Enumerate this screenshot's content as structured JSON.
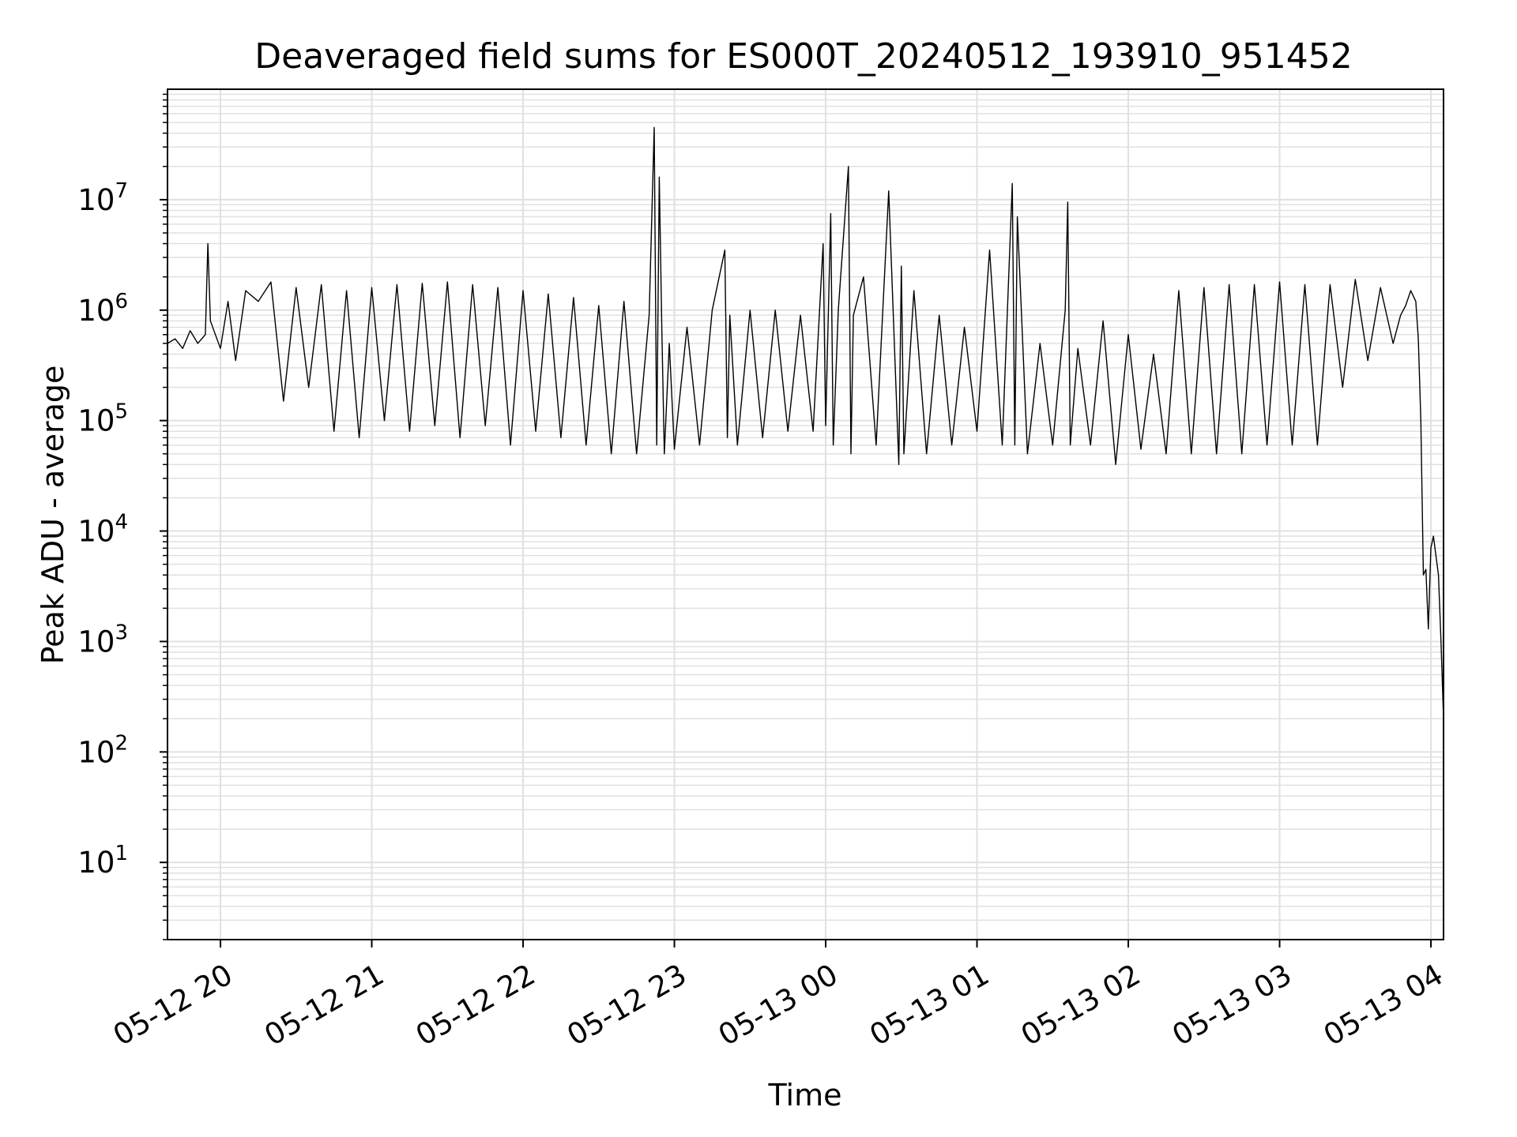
{
  "chart_data": {
    "type": "line",
    "title": "Deaveraged field sums for ES000T_20240512_193910_951452",
    "xlabel": "Time",
    "ylabel": "Peak ADU - average",
    "x_scale": "time",
    "y_scale": "log",
    "xlim": [
      "2024-05-12 19:39",
      "2024-05-13 04:05"
    ],
    "ylim": [
      2,
      100000000
    ],
    "grid": true,
    "legend": "none",
    "line_color": "#000000",
    "grid_color": "#e0e0e0",
    "x_ticks": [
      {
        "value": "2024-05-12 20:00",
        "label": "05-12 20"
      },
      {
        "value": "2024-05-12 21:00",
        "label": "05-12 21"
      },
      {
        "value": "2024-05-12 22:00",
        "label": "05-12 22"
      },
      {
        "value": "2024-05-12 23:00",
        "label": "05-12 23"
      },
      {
        "value": "2024-05-13 00:00",
        "label": "05-13 00"
      },
      {
        "value": "2024-05-13 01:00",
        "label": "05-13 01"
      },
      {
        "value": "2024-05-13 02:00",
        "label": "05-13 02"
      },
      {
        "value": "2024-05-13 03:00",
        "label": "05-13 03"
      },
      {
        "value": "2024-05-13 04:00",
        "label": "05-13 04"
      }
    ],
    "y_ticks": [
      {
        "value": 10,
        "base": "10",
        "exp": "1"
      },
      {
        "value": 100,
        "base": "10",
        "exp": "2"
      },
      {
        "value": 1000,
        "base": "10",
        "exp": "3"
      },
      {
        "value": 10000,
        "base": "10",
        "exp": "4"
      },
      {
        "value": 100000,
        "base": "10",
        "exp": "5"
      },
      {
        "value": 1000000,
        "base": "10",
        "exp": "6"
      },
      {
        "value": 10000000,
        "base": "10",
        "exp": "7"
      }
    ],
    "series": [
      {
        "x": [
          "2024-05-12 19:39",
          "2024-05-12 19:42",
          "2024-05-12 19:45",
          "2024-05-12 19:48",
          "2024-05-12 19:51",
          "2024-05-12 19:54",
          "2024-05-12 19:55",
          "2024-05-12 19:56",
          "2024-05-12 19:58",
          "2024-05-12 20:00",
          "2024-05-12 20:03",
          "2024-05-12 20:06",
          "2024-05-12 20:10",
          "2024-05-12 20:15",
          "2024-05-12 20:20",
          "2024-05-12 20:25",
          "2024-05-12 20:30",
          "2024-05-12 20:35",
          "2024-05-12 20:40",
          "2024-05-12 20:45",
          "2024-05-12 20:50",
          "2024-05-12 20:55",
          "2024-05-12 21:00",
          "2024-05-12 21:05",
          "2024-05-12 21:10",
          "2024-05-12 21:15",
          "2024-05-12 21:20",
          "2024-05-12 21:25",
          "2024-05-12 21:30",
          "2024-05-12 21:35",
          "2024-05-12 21:40",
          "2024-05-12 21:45",
          "2024-05-12 21:50",
          "2024-05-12 21:55",
          "2024-05-12 22:00",
          "2024-05-12 22:05",
          "2024-05-12 22:10",
          "2024-05-12 22:15",
          "2024-05-12 22:20",
          "2024-05-12 22:25",
          "2024-05-12 22:30",
          "2024-05-12 22:35",
          "2024-05-12 22:40",
          "2024-05-12 22:45",
          "2024-05-12 22:50",
          "2024-05-12 22:52",
          "2024-05-12 22:53",
          "2024-05-12 22:54",
          "2024-05-12 22:55",
          "2024-05-12 22:56",
          "2024-05-12 22:58",
          "2024-05-12 23:00",
          "2024-05-12 23:05",
          "2024-05-12 23:10",
          "2024-05-12 23:15",
          "2024-05-12 23:20",
          "2024-05-12 23:21",
          "2024-05-12 23:22",
          "2024-05-12 23:25",
          "2024-05-12 23:30",
          "2024-05-12 23:35",
          "2024-05-12 23:40",
          "2024-05-12 23:45",
          "2024-05-12 23:50",
          "2024-05-12 23:55",
          "2024-05-12 23:59",
          "2024-05-13 00:00",
          "2024-05-13 00:02",
          "2024-05-13 00:03",
          "2024-05-13 00:05",
          "2024-05-13 00:09",
          "2024-05-13 00:10",
          "2024-05-13 00:11",
          "2024-05-13 00:15",
          "2024-05-13 00:20",
          "2024-05-13 00:25",
          "2024-05-13 00:29",
          "2024-05-13 00:30",
          "2024-05-13 00:31",
          "2024-05-13 00:35",
          "2024-05-13 00:40",
          "2024-05-13 00:45",
          "2024-05-13 00:50",
          "2024-05-13 00:55",
          "2024-05-13 01:00",
          "2024-05-13 01:05",
          "2024-05-13 01:10",
          "2024-05-13 01:14",
          "2024-05-13 01:15",
          "2024-05-13 01:16",
          "2024-05-13 01:20",
          "2024-05-13 01:25",
          "2024-05-13 01:30",
          "2024-05-13 01:35",
          "2024-05-13 01:36",
          "2024-05-13 01:37",
          "2024-05-13 01:40",
          "2024-05-13 01:45",
          "2024-05-13 01:50",
          "2024-05-13 01:55",
          "2024-05-13 02:00",
          "2024-05-13 02:05",
          "2024-05-13 02:10",
          "2024-05-13 02:15",
          "2024-05-13 02:20",
          "2024-05-13 02:25",
          "2024-05-13 02:30",
          "2024-05-13 02:35",
          "2024-05-13 02:40",
          "2024-05-13 02:45",
          "2024-05-13 02:50",
          "2024-05-13 02:55",
          "2024-05-13 03:00",
          "2024-05-13 03:05",
          "2024-05-13 03:10",
          "2024-05-13 03:15",
          "2024-05-13 03:20",
          "2024-05-13 03:25",
          "2024-05-13 03:30",
          "2024-05-13 03:35",
          "2024-05-13 03:40",
          "2024-05-13 03:45",
          "2024-05-13 03:48",
          "2024-05-13 03:50",
          "2024-05-13 03:52",
          "2024-05-13 03:54",
          "2024-05-13 03:55",
          "2024-05-13 03:56",
          "2024-05-13 03:57",
          "2024-05-13 03:58",
          "2024-05-13 03:59",
          "2024-05-13 04:00",
          "2024-05-13 04:01",
          "2024-05-13 04:02",
          "2024-05-13 04:03",
          "2024-05-13 04:04",
          "2024-05-13 04:05"
        ],
        "y": [
          500000,
          550000,
          450000,
          650000,
          500000,
          600000,
          4000000,
          800000,
          600000,
          450000,
          1200000,
          350000,
          1500000,
          1200000,
          1800000,
          150000,
          1600000,
          200000,
          1700000,
          80000,
          1500000,
          70000,
          1600000,
          100000,
          1700000,
          80000,
          1750000,
          90000,
          1800000,
          70000,
          1700000,
          90000,
          1600000,
          60000,
          1500000,
          80000,
          1400000,
          70000,
          1300000,
          60000,
          1100000,
          50000,
          1200000,
          50000,
          900000,
          45000000,
          60000,
          16000000,
          700000,
          50000,
          500000,
          55000,
          700000,
          60000,
          1000000,
          3500000,
          70000,
          900000,
          60000,
          1000000,
          70000,
          1000000,
          80000,
          900000,
          80000,
          4000000,
          90000,
          7500000,
          60000,
          1000000,
          20000000,
          50000,
          900000,
          2000000,
          60000,
          12000000,
          40000,
          2500000,
          50000,
          1500000,
          50000,
          900000,
          60000,
          700000,
          80000,
          3500000,
          60000,
          14000000,
          60000,
          7000000,
          50000,
          500000,
          60000,
          1000000,
          9500000,
          60000,
          450000,
          60000,
          800000,
          40000,
          600000,
          55000,
          400000,
          50000,
          1500000,
          50000,
          1600000,
          50000,
          1700000,
          50000,
          1700000,
          60000,
          1800000,
          60000,
          1700000,
          60000,
          1700000,
          200000,
          1900000,
          350000,
          1600000,
          500000,
          900000,
          1100000,
          1500000,
          1200000,
          550000,
          100000,
          4000,
          4500,
          1300,
          7000,
          9000,
          6000,
          4000,
          1000,
          200
        ]
      }
    ]
  }
}
